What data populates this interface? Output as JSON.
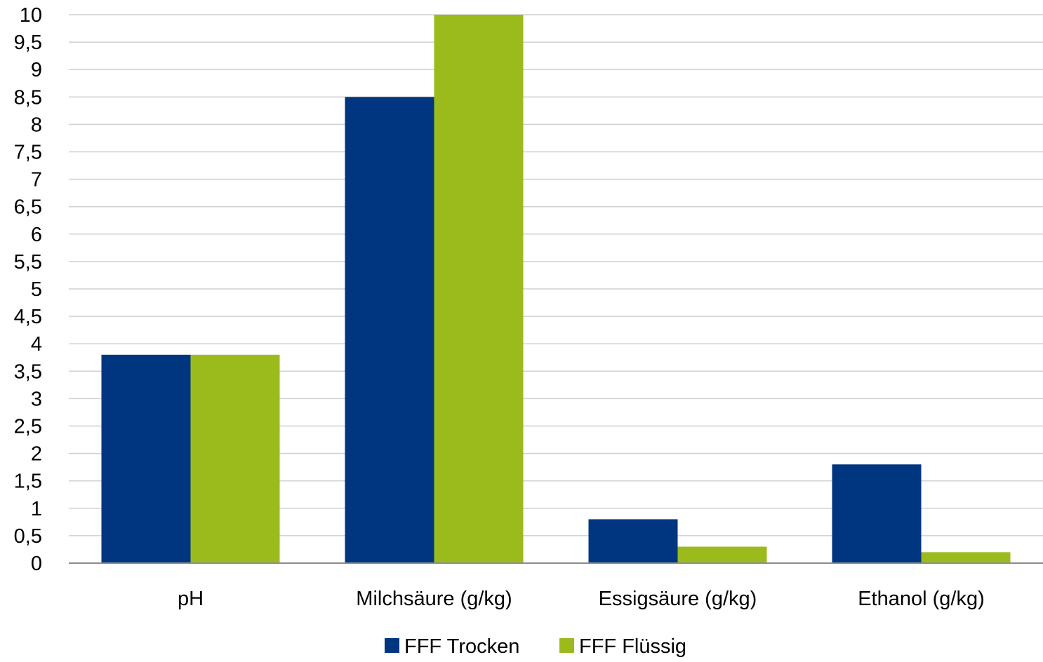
{
  "chart_data": {
    "type": "bar",
    "title": "",
    "xlabel": "",
    "ylabel": "",
    "categories": [
      "pH",
      "Milchsäure (g/kg)",
      "Essigsäure (g/kg)",
      "Ethanol (g/kg)"
    ],
    "series": [
      {
        "name": "FFF Trocken",
        "values": [
          3.8,
          8.5,
          0.8,
          1.8
        ],
        "color": "#003580"
      },
      {
        "name": "FFF Flüssig",
        "values": [
          3.8,
          10,
          0.3,
          0.2
        ],
        "color": "#9bbb1c"
      }
    ],
    "ylim": [
      0,
      10
    ],
    "yticks": [
      0,
      0.5,
      1,
      1.5,
      2,
      2.5,
      3,
      3.5,
      4,
      4.5,
      5,
      5.5,
      6,
      6.5,
      7,
      7.5,
      8,
      8.5,
      9,
      9.5,
      10
    ],
    "ytick_labels": [
      "0",
      "0,5",
      "1",
      "1,5",
      "2",
      "2,5",
      "3",
      "3,5",
      "4",
      "4,5",
      "5",
      "5,5",
      "6",
      "6,5",
      "7",
      "7,5",
      "8",
      "8,5",
      "9",
      "9,5",
      "10"
    ],
    "grid": true,
    "legend_position": "bottom-center",
    "colors": {
      "gridline": "#d0d0d0",
      "axis": "#8c8c8c"
    }
  }
}
